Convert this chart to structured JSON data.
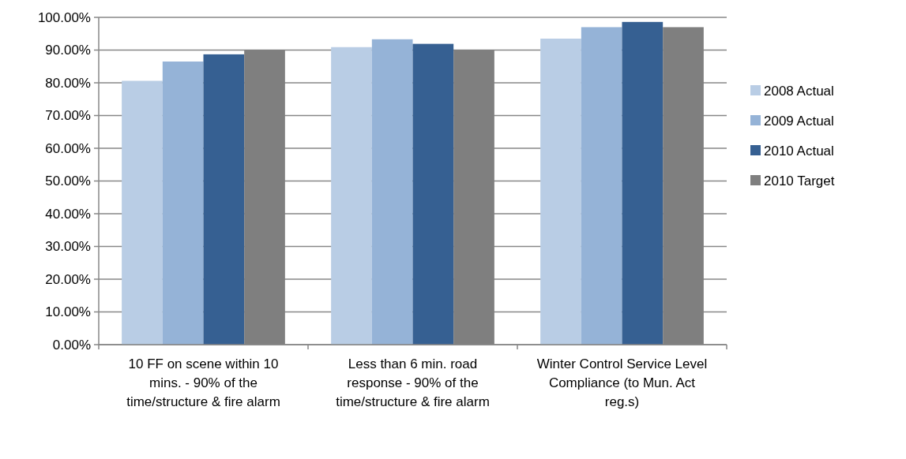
{
  "chart_data": {
    "type": "bar",
    "categories": [
      "10 FF on scene within 10 mins. - 90% of the time/structure & fire alarm",
      "Less than 6 min. road response - 90% of the time/structure & fire alarm",
      "Winter Control Service Level Compliance (to Mun. Act reg.s)"
    ],
    "series": [
      {
        "name": "2008 Actual",
        "color": "#b9cde5",
        "values": [
          80.6,
          90.9,
          93.5
        ]
      },
      {
        "name": "2009 Actual",
        "color": "#95b3d7",
        "values": [
          86.5,
          93.3,
          97.0
        ]
      },
      {
        "name": "2010 Actual",
        "color": "#366092",
        "values": [
          88.7,
          91.9,
          98.6
        ]
      },
      {
        "name": "2010 Target",
        "color": "#7f7f7f",
        "values": [
          90.0,
          90.0,
          97.0
        ]
      }
    ],
    "ylim": [
      0,
      100
    ],
    "yticks": [
      {
        "value": 0,
        "label": "0.00%"
      },
      {
        "value": 10,
        "label": "10.00%"
      },
      {
        "value": 20,
        "label": "20.00%"
      },
      {
        "value": 30,
        "label": "30.00%"
      },
      {
        "value": 40,
        "label": "40.00%"
      },
      {
        "value": 50,
        "label": "50.00%"
      },
      {
        "value": 60,
        "label": "60.00%"
      },
      {
        "value": 70,
        "label": "70.00%"
      },
      {
        "value": 80,
        "label": "80.00%"
      },
      {
        "value": 90,
        "label": "90.00%"
      },
      {
        "value": 100,
        "label": "100.00%"
      }
    ],
    "grid": "y",
    "legend": "right"
  }
}
